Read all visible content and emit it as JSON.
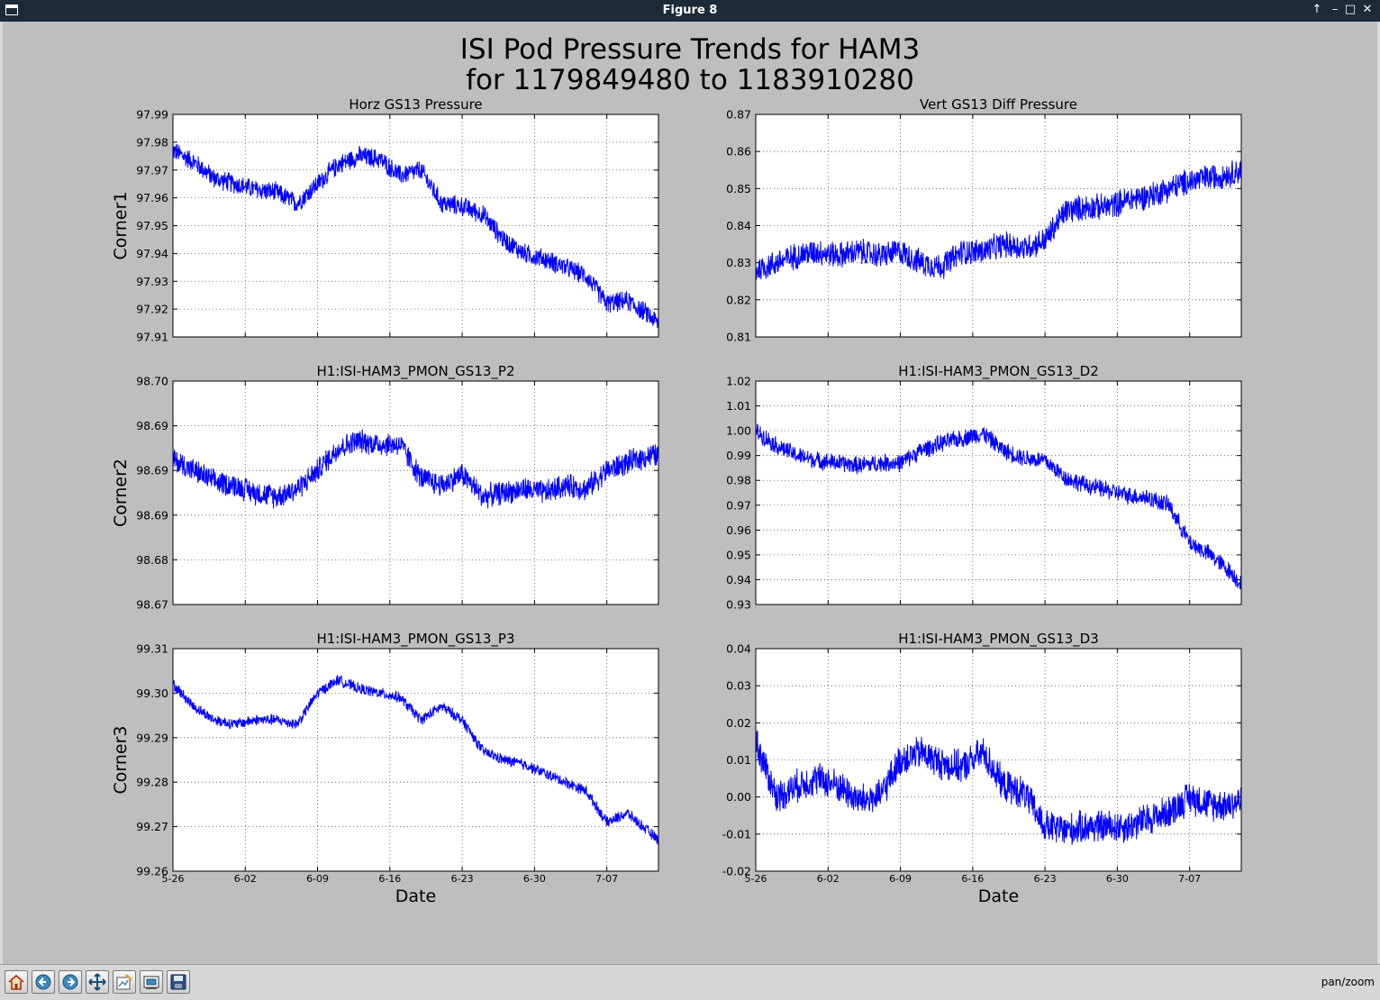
{
  "window": {
    "title": "Figure 8"
  },
  "figure": {
    "title_line1": "ISI Pod Pressure Trends for HAM3",
    "title_line2": "for 1179849480 to 1183910280"
  },
  "toolbar": {
    "buttons": [
      "home-icon",
      "back-icon",
      "forward-icon",
      "pan-icon",
      "subplots-icon",
      "configure-icon",
      "save-icon"
    ],
    "status": "pan/zoom"
  },
  "colors": {
    "trace": "#0000ff",
    "background": "#bebebe",
    "axes": "#ffffff"
  },
  "chart_data": [
    {
      "type": "line",
      "title": "Horz GS13 Pressure",
      "ylabel": "Corner1",
      "xlabel": "",
      "ylim": [
        97.91,
        97.99
      ],
      "yticks": [
        "97.91",
        "97.92",
        "97.93",
        "97.94",
        "97.95",
        "97.96",
        "97.97",
        "97.98",
        "97.99"
      ],
      "xticks": [
        "5-26",
        "6-02",
        "6-09",
        "6-16",
        "6-23",
        "6-30",
        "7-07"
      ],
      "show_xtick_labels": false,
      "grid": true,
      "x_range_days": [
        0,
        47
      ],
      "series": [
        {
          "x": [
            0,
            2,
            4,
            6,
            8,
            10,
            12,
            14,
            16,
            18,
            20,
            22,
            24,
            26,
            28,
            30,
            32,
            34,
            36,
            38,
            40,
            42,
            44,
            46,
            47
          ],
          "y": [
            97.977,
            97.973,
            97.967,
            97.965,
            97.963,
            97.962,
            97.958,
            97.965,
            97.972,
            97.975,
            97.974,
            97.968,
            97.97,
            97.958,
            97.957,
            97.954,
            97.945,
            97.94,
            97.938,
            97.935,
            97.932,
            97.922,
            97.923,
            97.918,
            97.915
          ],
          "noise": 0.004
        }
      ]
    },
    {
      "type": "line",
      "title": "Vert GS13 Diff Pressure",
      "ylabel": "",
      "xlabel": "",
      "ylim": [
        0.81,
        0.87
      ],
      "yticks": [
        "0.81",
        "0.82",
        "0.83",
        "0.84",
        "0.85",
        "0.86",
        "0.87"
      ],
      "xticks": [
        "5-26",
        "6-02",
        "6-09",
        "6-16",
        "6-23",
        "6-30",
        "7-07"
      ],
      "show_xtick_labels": false,
      "grid": true,
      "x_range_days": [
        0,
        47
      ],
      "series": [
        {
          "x": [
            0,
            2,
            4,
            6,
            8,
            10,
            12,
            14,
            16,
            18,
            20,
            22,
            24,
            26,
            28,
            30,
            32,
            34,
            36,
            38,
            40,
            42,
            44,
            46,
            47
          ],
          "y": [
            0.828,
            0.83,
            0.832,
            0.833,
            0.832,
            0.833,
            0.832,
            0.833,
            0.83,
            0.829,
            0.833,
            0.833,
            0.835,
            0.834,
            0.836,
            0.844,
            0.845,
            0.845,
            0.847,
            0.848,
            0.85,
            0.852,
            0.853,
            0.854,
            0.855
          ],
          "noise": 0.004
        }
      ]
    },
    {
      "type": "line",
      "title": "H1:ISI-HAM3_PMON_GS13_P2",
      "ylabel": "Corner2",
      "xlabel": "",
      "ylim": [
        98.67,
        98.7
      ],
      "yticks": [
        "98.67",
        "98.68",
        "98.69",
        "98.69",
        "98.69",
        "98.70"
      ],
      "xticks": [
        "5-26",
        "6-02",
        "6-09",
        "6-16",
        "6-23",
        "6-30",
        "7-07"
      ],
      "show_xtick_labels": false,
      "grid": true,
      "x_range_days": [
        0,
        47
      ],
      "series": [
        {
          "x": [
            0,
            2,
            4,
            6,
            8,
            10,
            12,
            14,
            16,
            18,
            20,
            22,
            24,
            26,
            28,
            30,
            32,
            34,
            36,
            38,
            40,
            42,
            44,
            46,
            47
          ],
          "y": [
            98.6895,
            98.688,
            98.6865,
            98.686,
            98.685,
            98.6845,
            98.6855,
            98.688,
            98.691,
            98.692,
            98.6915,
            98.6915,
            98.687,
            98.686,
            98.6875,
            98.6845,
            98.685,
            98.6855,
            98.685,
            98.686,
            98.6855,
            98.688,
            98.689,
            98.69,
            98.69
          ],
          "noise": 0.0018
        }
      ]
    },
    {
      "type": "line",
      "title": "H1:ISI-HAM3_PMON_GS13_D2",
      "ylabel": "",
      "xlabel": "",
      "ylim": [
        0.93,
        1.02
      ],
      "yticks": [
        "0.93",
        "0.94",
        "0.95",
        "0.96",
        "0.97",
        "0.98",
        "0.99",
        "1.00",
        "1.01",
        "1.02"
      ],
      "xticks": [
        "5-26",
        "6-02",
        "6-09",
        "6-16",
        "6-23",
        "6-30",
        "7-07"
      ],
      "show_xtick_labels": false,
      "grid": true,
      "x_range_days": [
        0,
        47
      ],
      "series": [
        {
          "x": [
            0,
            2,
            4,
            6,
            8,
            10,
            12,
            14,
            16,
            18,
            20,
            22,
            24,
            26,
            28,
            30,
            32,
            34,
            36,
            38,
            40,
            42,
            44,
            46,
            47
          ],
          "y": [
            1.0,
            0.994,
            0.99,
            0.988,
            0.987,
            0.986,
            0.987,
            0.987,
            0.992,
            0.995,
            0.997,
            0.999,
            0.992,
            0.989,
            0.988,
            0.981,
            0.978,
            0.976,
            0.974,
            0.973,
            0.97,
            0.955,
            0.95,
            0.943,
            0.938
          ],
          "noise": 0.004
        }
      ]
    },
    {
      "type": "line",
      "title": "H1:ISI-HAM3_PMON_GS13_P3",
      "ylabel": "Corner3",
      "xlabel": "Date",
      "ylim": [
        99.26,
        99.31
      ],
      "yticks": [
        "99.26",
        "99.27",
        "99.28",
        "99.29",
        "99.30",
        "99.31"
      ],
      "xticks": [
        "5-26",
        "6-02",
        "6-09",
        "6-16",
        "6-23",
        "6-30",
        "7-07"
      ],
      "show_xtick_labels": true,
      "grid": true,
      "x_range_days": [
        0,
        47
      ],
      "series": [
        {
          "x": [
            0,
            2,
            4,
            6,
            8,
            10,
            12,
            14,
            16,
            18,
            20,
            22,
            24,
            26,
            28,
            30,
            32,
            34,
            36,
            38,
            40,
            42,
            44,
            46,
            47
          ],
          "y": [
            99.302,
            99.297,
            99.294,
            99.293,
            99.294,
            99.294,
            99.293,
            99.3,
            99.303,
            99.301,
            99.3,
            99.299,
            99.294,
            99.297,
            99.294,
            99.287,
            99.285,
            99.284,
            99.282,
            99.28,
            99.278,
            99.271,
            99.273,
            99.269,
            99.267
          ],
          "noise": 0.0014
        }
      ]
    },
    {
      "type": "line",
      "title": "H1:ISI-HAM3_PMON_GS13_D3",
      "ylabel": "",
      "xlabel": "Date",
      "ylim": [
        -0.02,
        0.04
      ],
      "yticks": [
        "-0.02",
        "-0.01",
        "0.00",
        "0.01",
        "0.02",
        "0.03",
        "0.04"
      ],
      "xticks": [
        "5-26",
        "6-02",
        "6-09",
        "6-16",
        "6-23",
        "6-30",
        "7-07"
      ],
      "show_xtick_labels": true,
      "grid": true,
      "x_range_days": [
        0,
        47
      ],
      "series": [
        {
          "x": [
            0,
            2,
            4,
            6,
            8,
            10,
            12,
            14,
            16,
            18,
            20,
            22,
            24,
            26,
            28,
            30,
            32,
            34,
            36,
            38,
            40,
            42,
            44,
            46,
            47
          ],
          "y": [
            0.015,
            0.0,
            0.003,
            0.005,
            0.003,
            -0.001,
            0.0,
            0.01,
            0.012,
            0.009,
            0.008,
            0.012,
            0.003,
            0.001,
            -0.008,
            -0.009,
            -0.008,
            -0.008,
            -0.008,
            -0.006,
            -0.004,
            0.0,
            -0.002,
            -0.002,
            -0.001
          ],
          "noise": 0.005
        }
      ]
    }
  ]
}
